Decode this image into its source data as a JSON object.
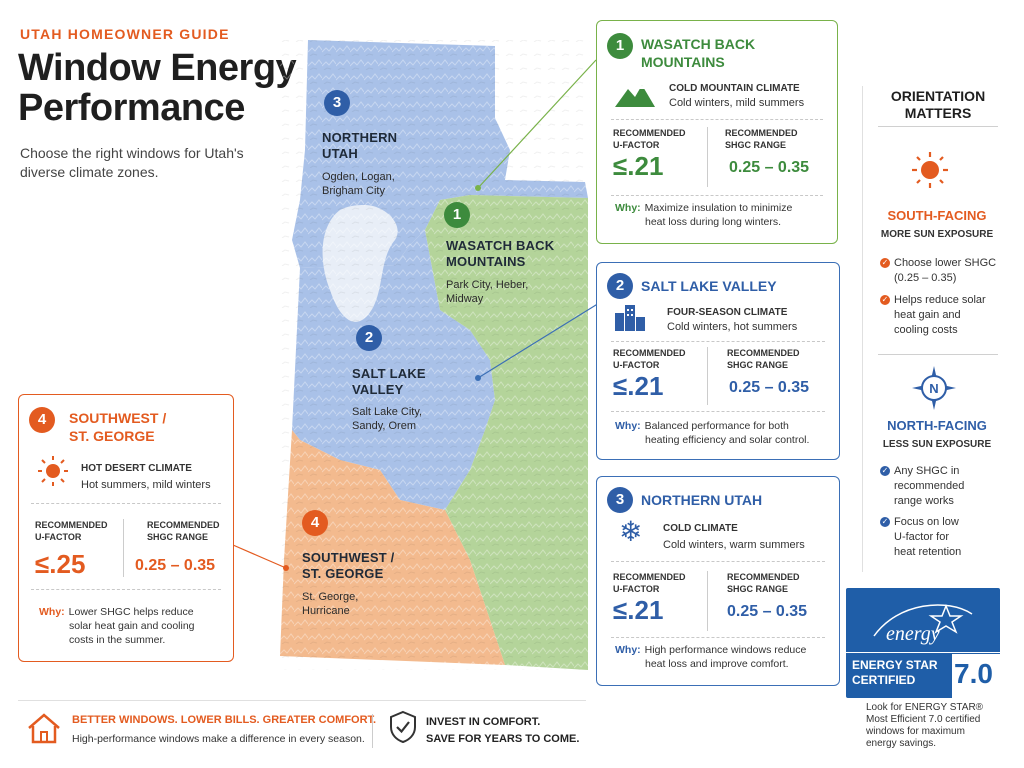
{
  "header": {
    "kicker": "UTAH HOMEOWNER GUIDE",
    "title": "Window Energy Performance",
    "subtitle": "Choose the right windows for Utah's diverse climate zones."
  },
  "map": {
    "colors": {
      "northern": "#a9c1e8",
      "wasatch": "#b4d49a",
      "salt_lake": "#a9c1e8",
      "southwest": "#f3ba8e",
      "lake": "#e8eef7"
    },
    "regions": [
      {
        "number": "3",
        "name_line1": "NORTHERN",
        "name_line2": "UTAH",
        "cities_line1": "Ogden, Logan,",
        "cities_line2": "Brigham City"
      },
      {
        "number": "1",
        "name_line1": "WASATCH BACK",
        "name_line2": "MOUNTAINS",
        "cities_line1": "Park City, Heber,",
        "cities_line2": "Midway"
      },
      {
        "number": "2",
        "name_line1": "SALT LAKE",
        "name_line2": "VALLEY",
        "cities_line1": "Salt Lake City,",
        "cities_line2": "Sandy, Orem"
      },
      {
        "number": "4",
        "name_line1": "SOUTHWEST /",
        "name_line2": "ST. GEORGE",
        "cities_line1": "St. George,",
        "cities_line2": "Hurricane"
      }
    ]
  },
  "cards": {
    "wasatch": {
      "number": "1",
      "title_line1": "WASATCH BACK",
      "title_line2": "MOUNTAINS",
      "icon": "mountain-icon",
      "climate": "COLD MOUNTAIN CLIMATE",
      "climate_sub": "Cold winters, mild summers",
      "uf_label1": "RECOMMENDED",
      "uf_label2": "U-FACTOR",
      "uf_value": "≤.21",
      "shgc_label1": "RECOMMENDED",
      "shgc_label2": "SHGC RANGE",
      "shgc_value": "0.25 – 0.35",
      "why_label": "Why:",
      "why_line1": "Maximize insulation to minimize",
      "why_line2": "heat loss during long winters."
    },
    "salt_lake": {
      "number": "2",
      "title": "SALT LAKE VALLEY",
      "icon": "city-buildings-icon",
      "climate": "FOUR-SEASON CLIMATE",
      "climate_sub": "Cold winters, hot summers",
      "uf_label1": "RECOMMENDED",
      "uf_label2": "U-FACTOR",
      "uf_value": "≤.21",
      "shgc_label1": "RECOMMENDED",
      "shgc_label2": "SHGC RANGE",
      "shgc_value": "0.25 – 0.35",
      "why_label": "Why:",
      "why_line1": "Balanced performance for both",
      "why_line2": "heating efficiency and solar control."
    },
    "northern": {
      "number": "3",
      "title": "NORTHERN UTAH",
      "icon": "snowflake-icon",
      "climate": "COLD CLIMATE",
      "climate_sub": "Cold winters, warm summers",
      "uf_label1": "RECOMMENDED",
      "uf_label2": "U-FACTOR",
      "uf_value": "≤.21",
      "shgc_label1": "RECOMMENDED",
      "shgc_label2": "SHGC RANGE",
      "shgc_value": "0.25 – 0.35",
      "why_label": "Why:",
      "why_line1": "High performance windows reduce",
      "why_line2": "heat loss and improve comfort."
    },
    "southwest": {
      "number": "4",
      "title_line1": "SOUTHWEST /",
      "title_line2": "ST. GEORGE",
      "icon": "sun-icon",
      "climate": "HOT DESERT CLIMATE",
      "climate_sub": "Hot summers, mild winters",
      "uf_label1": "RECOMMENDED",
      "uf_label2": "U-FACTOR",
      "uf_value": "≤.25",
      "shgc_label1": "RECOMMENDED",
      "shgc_label2": "SHGC RANGE",
      "shgc_value": "0.25 – 0.35",
      "why_label": "Why:",
      "why_line1": "Lower SHGC helps reduce",
      "why_line2": "solar heat gain and cooling",
      "why_line3": "costs in the summer."
    }
  },
  "orientation": {
    "title_line1": "ORIENTATION",
    "title_line2": "MATTERS",
    "south": {
      "heading": "SOUTH-FACING",
      "sub": "MORE SUN EXPOSURE",
      "b1_line1": "Choose lower SHGC",
      "b1_line2": "(0.25 – 0.35)",
      "b2_line1": "Helps reduce solar",
      "b2_line2": "heat gain and",
      "b2_line3": "cooling costs"
    },
    "north": {
      "heading": "NORTH-FACING",
      "sub": "LESS SUN EXPOSURE",
      "compass_letter": "N",
      "b1_line1": "Any SHGC in",
      "b1_line2": "recommended",
      "b1_line3": "range works",
      "b2_line1": "Focus on low",
      "b2_line2": "U-factor for",
      "b2_line3": "heat retention"
    }
  },
  "energy_star": {
    "logo_text": "energy",
    "label_line1": "ENERGY STAR",
    "label_line2": "CERTIFIED",
    "version": "7.0",
    "caption_line1": "Look for ENERGY STAR®",
    "caption_line2": "Most Efficient 7.0 certified",
    "caption_line3": "windows for maximum",
    "caption_line4": "energy savings."
  },
  "footer": {
    "left_heading": "BETTER WINDOWS. LOWER BILLS. GREATER COMFORT.",
    "left_sub": "High-performance windows make a difference in every season.",
    "right_line1": "INVEST IN COMFORT.",
    "right_line2": "SAVE FOR YEARS TO COME."
  },
  "colors": {
    "orange": "#e35b20",
    "green": "#3d8b3d",
    "blue": "#2f5ea7",
    "energy_star_blue": "#1f5ea8"
  }
}
